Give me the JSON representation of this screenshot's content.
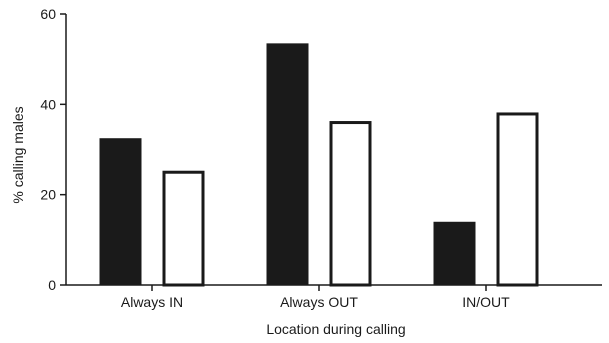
{
  "chart_data": {
    "type": "bar",
    "categories": [
      "Always IN",
      "Always OUT",
      "IN/OUT"
    ],
    "series": [
      {
        "values": [
          32.5,
          53.5,
          14
        ],
        "color": "#1a1a1a",
        "fill": "solid"
      },
      {
        "values": [
          25.3,
          36.3,
          38.2
        ],
        "color": "#ffffff",
        "fill": "outline"
      }
    ],
    "xlabel": "Location during calling",
    "ylabel": "% calling males",
    "ylim": [
      0,
      60
    ],
    "yticks": [
      0,
      20,
      40,
      60
    ],
    "grid": false,
    "legend": "none"
  }
}
